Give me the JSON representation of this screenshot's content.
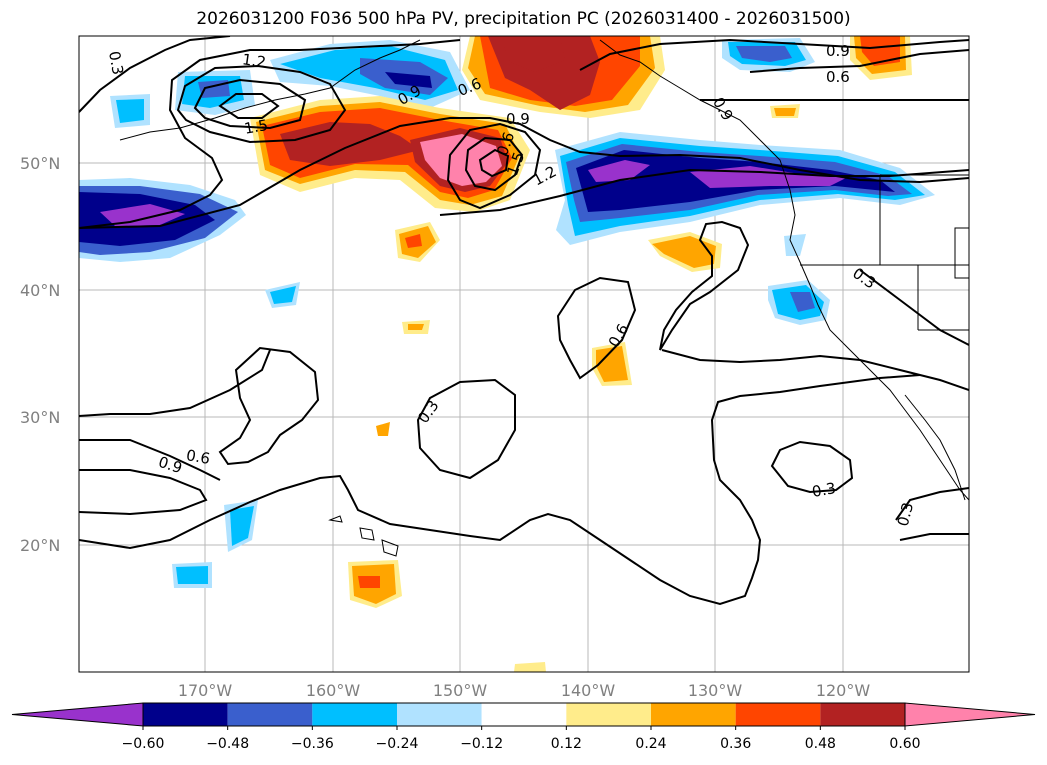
{
  "title": "2026031200 F036 500 hPa PV, precipitation PC (2026031400 - 2026031500)",
  "lat_labels": [
    "50°N",
    "40°N",
    "30°N",
    "20°N"
  ],
  "lon_labels": [
    "170°W",
    "160°W",
    "150°W",
    "140°W",
    "130°W",
    "120°W"
  ],
  "colorbar": {
    "ticks": [
      "−0.60",
      "−0.48",
      "−0.36",
      "−0.24",
      "−0.12",
      "0.12",
      "0.24",
      "0.36",
      "0.48",
      "0.60"
    ],
    "colors": [
      "#9932cc",
      "#00008b",
      "#3a5fcd",
      "#00bfff",
      "#b0e2ff",
      "#ffffff",
      "#ffec8b",
      "#ffa500",
      "#ff4500",
      "#b22222",
      "#ff82ab"
    ]
  },
  "contour_labels": [
    "0.3",
    "1.2",
    "1.5",
    "0.9",
    "0.6",
    "0.9",
    "0.6",
    "1.5",
    "1.2",
    "0.9",
    "0.9",
    "0.6",
    "0.3",
    "0.6",
    "0.3",
    "0.6",
    "0.9",
    "0.3",
    "0.3"
  ]
}
